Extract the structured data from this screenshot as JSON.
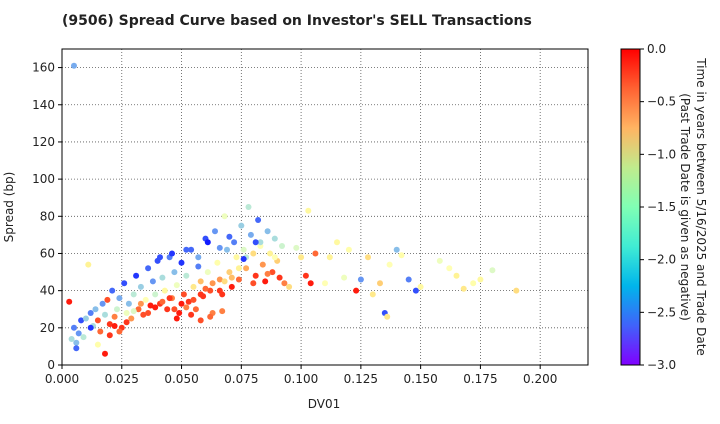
{
  "chart_data": {
    "type": "scatter",
    "title": "(9506)   Spread Curve based on Investor's SELL Transactions",
    "xlabel": "DV01",
    "ylabel": "Spread (bp)",
    "xlim": [
      0.0,
      0.22
    ],
    "ylim": [
      0,
      170
    ],
    "xticks": [
      0.0,
      0.025,
      0.05,
      0.075,
      0.1,
      0.125,
      0.15,
      0.175,
      0.2
    ],
    "xtick_labels": [
      "0.000",
      "0.025",
      "0.050",
      "0.075",
      "0.100",
      "0.125",
      "0.150",
      "0.175",
      "0.200"
    ],
    "yticks": [
      0,
      20,
      40,
      60,
      80,
      100,
      120,
      140,
      160
    ],
    "ytick_labels": [
      "0",
      "20",
      "40",
      "60",
      "80",
      "100",
      "120",
      "140",
      "160"
    ],
    "grid": true,
    "colormap": "rainbow",
    "colorbar": {
      "label_line1": "Time in years between 5/16/2025 and Trade Date",
      "label_line2": "(Past Trade Date is given as negative)",
      "min": -3.0,
      "max": 0.0,
      "ticks": [
        0.0,
        -0.5,
        -1.0,
        -1.5,
        -2.0,
        -2.5,
        -3.0
      ],
      "tick_labels": [
        "0.0",
        "−0.5",
        "−1.0",
        "−1.5",
        "−2.0",
        "−2.5",
        "−3.0"
      ]
    },
    "points": [
      [
        0.005,
        161,
        -2.3
      ],
      [
        0.003,
        34,
        -0.1
      ],
      [
        0.004,
        14,
        -2.0
      ],
      [
        0.005,
        20,
        -2.5
      ],
      [
        0.006,
        12,
        -2.2
      ],
      [
        0.007,
        17,
        -2.4
      ],
      [
        0.006,
        9,
        -2.6
      ],
      [
        0.008,
        24,
        -2.7
      ],
      [
        0.009,
        15,
        -1.9
      ],
      [
        0.01,
        25,
        -2.1
      ],
      [
        0.011,
        54,
        -1.2
      ],
      [
        0.012,
        28,
        -2.5
      ],
      [
        0.013,
        21,
        -2.0
      ],
      [
        0.014,
        30,
        -2.2
      ],
      [
        0.015,
        11,
        -1.4
      ],
      [
        0.016,
        18,
        -0.4
      ],
      [
        0.017,
        33,
        -2.4
      ],
      [
        0.018,
        27,
        -2.0
      ],
      [
        0.019,
        35,
        -0.3
      ],
      [
        0.02,
        22,
        -0.2
      ],
      [
        0.018,
        6,
        -0.1
      ],
      [
        0.021,
        40,
        -2.6
      ],
      [
        0.022,
        26,
        -0.5
      ],
      [
        0.023,
        30,
        -1.8
      ],
      [
        0.024,
        36,
        -2.3
      ],
      [
        0.025,
        20,
        -0.2
      ],
      [
        0.026,
        44,
        -2.7
      ],
      [
        0.027,
        28,
        -1.6
      ],
      [
        0.028,
        33,
        -2.2
      ],
      [
        0.029,
        25,
        -0.6
      ],
      [
        0.03,
        38,
        -1.9
      ],
      [
        0.031,
        48,
        -2.8
      ],
      [
        0.032,
        30,
        -0.4
      ],
      [
        0.033,
        42,
        -2.1
      ],
      [
        0.034,
        27,
        -0.3
      ],
      [
        0.035,
        35,
        -1.5
      ],
      [
        0.036,
        52,
        -2.6
      ],
      [
        0.037,
        32,
        -0.1
      ],
      [
        0.038,
        45,
        -2.4
      ],
      [
        0.039,
        38,
        -1.8
      ],
      [
        0.04,
        56,
        -2.7
      ],
      [
        0.041,
        33,
        -0.2
      ],
      [
        0.042,
        47,
        -2.0
      ],
      [
        0.043,
        40,
        -1.3
      ],
      [
        0.044,
        30,
        -0.2
      ],
      [
        0.045,
        58,
        -2.5
      ],
      [
        0.046,
        36,
        -0.5
      ],
      [
        0.047,
        50,
        -2.2
      ],
      [
        0.048,
        43,
        -1.6
      ],
      [
        0.049,
        28,
        -0.1
      ],
      [
        0.05,
        55,
        -2.8
      ],
      [
        0.051,
        38,
        -0.3
      ],
      [
        0.052,
        48,
        -1.9
      ],
      [
        0.053,
        34,
        -0.2
      ],
      [
        0.054,
        62,
        -2.6
      ],
      [
        0.055,
        42,
        -1.1
      ],
      [
        0.056,
        30,
        -0.4
      ],
      [
        0.057,
        58,
        -2.3
      ],
      [
        0.058,
        45,
        -0.8
      ],
      [
        0.059,
        37,
        -0.2
      ],
      [
        0.06,
        68,
        -2.7
      ],
      [
        0.061,
        50,
        -1.6
      ],
      [
        0.062,
        40,
        -0.3
      ],
      [
        0.063,
        28,
        -0.5
      ],
      [
        0.064,
        72,
        -2.4
      ],
      [
        0.065,
        55,
        -1.4
      ],
      [
        0.066,
        46,
        -0.6
      ],
      [
        0.067,
        38,
        -0.2
      ],
      [
        0.068,
        80,
        -1.6
      ],
      [
        0.069,
        62,
        -2.2
      ],
      [
        0.07,
        50,
        -0.9
      ],
      [
        0.071,
        42,
        -0.1
      ],
      [
        0.072,
        66,
        -2.5
      ],
      [
        0.073,
        58,
        -1.3
      ],
      [
        0.074,
        46,
        -0.4
      ],
      [
        0.075,
        75,
        -2.1
      ],
      [
        0.076,
        62,
        -1.7
      ],
      [
        0.077,
        52,
        -0.7
      ],
      [
        0.078,
        85,
        -1.9
      ],
      [
        0.079,
        70,
        -2.3
      ],
      [
        0.08,
        60,
        -1.0
      ],
      [
        0.081,
        48,
        -0.2
      ],
      [
        0.082,
        78,
        -2.6
      ],
      [
        0.083,
        64,
        -1.5
      ],
      [
        0.084,
        54,
        -0.6
      ],
      [
        0.085,
        45,
        -0.1
      ],
      [
        0.086,
        72,
        -2.2
      ],
      [
        0.087,
        60,
        -1.2
      ],
      [
        0.088,
        50,
        -0.3
      ],
      [
        0.089,
        68,
        -2.0
      ],
      [
        0.09,
        56,
        -0.9
      ],
      [
        0.091,
        47,
        -0.2
      ],
      [
        0.092,
        64,
        -1.8
      ],
      [
        0.093,
        44,
        -0.5
      ],
      [
        0.095,
        42,
        -1.0
      ],
      [
        0.098,
        63,
        -1.7
      ],
      [
        0.1,
        58,
        -1.1
      ],
      [
        0.102,
        48,
        -0.2
      ],
      [
        0.103,
        83,
        -1.3
      ],
      [
        0.104,
        44,
        -0.1
      ],
      [
        0.106,
        60,
        -0.4
      ],
      [
        0.11,
        44,
        -1.5
      ],
      [
        0.112,
        58,
        -1.2
      ],
      [
        0.115,
        66,
        -1.3
      ],
      [
        0.118,
        47,
        -1.6
      ],
      [
        0.12,
        62,
        -1.4
      ],
      [
        0.123,
        40,
        -0.1
      ],
      [
        0.125,
        46,
        -2.4
      ],
      [
        0.128,
        58,
        -1.0
      ],
      [
        0.13,
        38,
        -1.1
      ],
      [
        0.133,
        44,
        -0.9
      ],
      [
        0.135,
        28,
        -2.7
      ],
      [
        0.136,
        26,
        -1.1
      ],
      [
        0.137,
        54,
        -1.5
      ],
      [
        0.14,
        62,
        -2.2
      ],
      [
        0.142,
        59,
        -1.4
      ],
      [
        0.145,
        46,
        -2.5
      ],
      [
        0.148,
        40,
        -2.7
      ],
      [
        0.15,
        42,
        -1.3
      ],
      [
        0.158,
        56,
        -1.6
      ],
      [
        0.162,
        52,
        -1.5
      ],
      [
        0.165,
        48,
        -1.2
      ],
      [
        0.168,
        41,
        -1.1
      ],
      [
        0.172,
        44,
        -1.4
      ],
      [
        0.175,
        46,
        -1.3
      ],
      [
        0.18,
        51,
        -1.7
      ],
      [
        0.19,
        40,
        -1.0
      ],
      [
        0.012,
        20,
        -2.8
      ],
      [
        0.015,
        24,
        -0.3
      ],
      [
        0.02,
        16,
        -0.2
      ],
      [
        0.022,
        21,
        -0.1
      ],
      [
        0.024,
        18,
        -0.4
      ],
      [
        0.027,
        23,
        -0.2
      ],
      [
        0.03,
        29,
        -1.7
      ],
      [
        0.033,
        33,
        -0.6
      ],
      [
        0.036,
        28,
        -0.3
      ],
      [
        0.039,
        31,
        -0.1
      ],
      [
        0.042,
        34,
        -0.4
      ],
      [
        0.045,
        36,
        -0.2
      ],
      [
        0.047,
        30,
        -0.3
      ],
      [
        0.05,
        33,
        -0.1
      ],
      [
        0.052,
        31,
        -0.5
      ],
      [
        0.055,
        35,
        -0.3
      ],
      [
        0.058,
        38,
        -0.2
      ],
      [
        0.06,
        41,
        -0.4
      ],
      [
        0.063,
        44,
        -0.6
      ],
      [
        0.066,
        40,
        -0.2
      ],
      [
        0.068,
        45,
        -1.0
      ],
      [
        0.071,
        47,
        -0.8
      ],
      [
        0.074,
        52,
        -1.2
      ],
      [
        0.077,
        58,
        -1.9
      ],
      [
        0.08,
        44,
        -0.3
      ],
      [
        0.083,
        66,
        -2.0
      ],
      [
        0.086,
        49,
        -0.5
      ],
      [
        0.089,
        58,
        -1.5
      ],
      [
        0.041,
        58,
        -2.7
      ],
      [
        0.046,
        60,
        -2.8
      ],
      [
        0.052,
        62,
        -2.6
      ],
      [
        0.057,
        53,
        -2.5
      ],
      [
        0.061,
        66,
        -2.9
      ],
      [
        0.066,
        63,
        -2.4
      ],
      [
        0.07,
        69,
        -2.6
      ],
      [
        0.076,
        57,
        -2.8
      ],
      [
        0.081,
        66,
        -2.7
      ],
      [
        0.048,
        25,
        -0.1
      ],
      [
        0.054,
        27,
        -0.2
      ],
      [
        0.058,
        24,
        -0.3
      ],
      [
        0.062,
        26,
        -0.4
      ],
      [
        0.067,
        29,
        -0.5
      ]
    ]
  }
}
